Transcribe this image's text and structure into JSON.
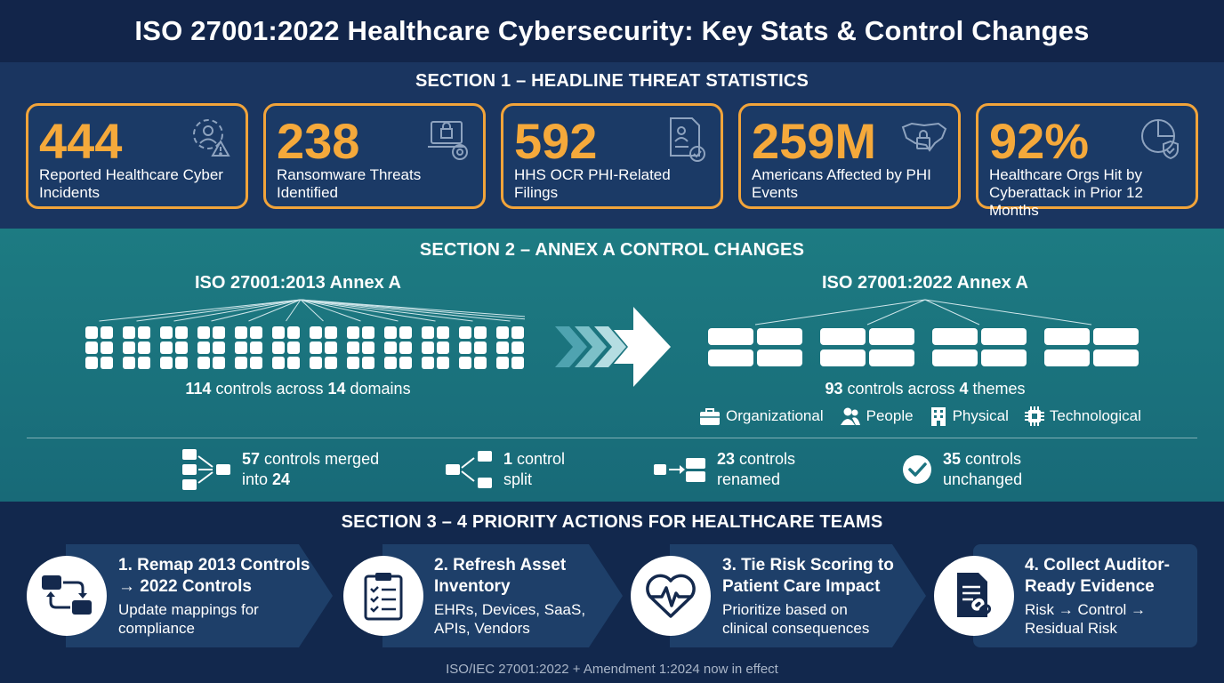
{
  "title": "ISO 27001:2022 Healthcare Cybersecurity: Key Stats & Control Changes",
  "section1": {
    "heading": "SECTION 1 – HEADLINE THREAT STATISTICS",
    "stats": [
      {
        "value": "444",
        "label": "Reported Healthcare Cyber Incidents",
        "icon": "alert-person-icon"
      },
      {
        "value": "238",
        "label": "Ransomware Threats Identified",
        "icon": "ransomware-laptop-icon"
      },
      {
        "value": "592",
        "label": "HHS OCR PHI-Related Filings",
        "icon": "document-check-icon"
      },
      {
        "value": "259M",
        "label": "Americans Affected by PHI Events",
        "icon": "us-map-lock-icon"
      },
      {
        "value": "92%",
        "label": "Healthcare Orgs Hit by Cyberattack in Prior 12 Months",
        "icon": "pie-shield-icon"
      }
    ]
  },
  "section2": {
    "heading": "SECTION 2 – ANNEX A CONTROL CHANGES",
    "old": {
      "title": "ISO 27001:2013 Annex A",
      "count": "114",
      "mid": " controls across ",
      "domains": "14",
      "suffix": " domains"
    },
    "new": {
      "title": "ISO 27001:2022 Annex A",
      "count": "93",
      "mid": " controls across ",
      "themes": "4",
      "suffix": " themes"
    },
    "themes": [
      {
        "label": "Organizational",
        "icon": "briefcase-icon"
      },
      {
        "label": "People",
        "icon": "people-icon"
      },
      {
        "label": "Physical",
        "icon": "building-icon"
      },
      {
        "label": "Technological",
        "icon": "chip-icon"
      }
    ],
    "changes": {
      "merged": {
        "count": "57",
        "text": " controls merged",
        "line2_pre": "into ",
        "line2_num": "24"
      },
      "split": {
        "count": "1",
        "text": " control",
        "line2": "split"
      },
      "renamed": {
        "count": "23",
        "text": " controls",
        "line2": "renamed"
      },
      "unchanged": {
        "count": "35",
        "text": " controls",
        "line2": "unchanged"
      }
    }
  },
  "section3": {
    "heading": "SECTION 3 – 4 PRIORITY ACTIONS FOR HEALTHCARE TEAMS",
    "actions": [
      {
        "title1": "1. Remap 2013 Controls",
        "title2": "→ 2022 Controls",
        "desc1": "Update mappings for",
        "desc2": "compliance",
        "icon": "remap-icon"
      },
      {
        "title1": "2. Refresh Asset",
        "title2": "Inventory",
        "desc1": "EHRs, Devices, SaaS,",
        "desc2": "APIs, Vendors",
        "icon": "clipboard-checklist-icon"
      },
      {
        "title1": "3. Tie Risk Scoring to",
        "title2": "Patient Care Impact",
        "desc1": "Prioritize based on",
        "desc2": "clinical consequences",
        "icon": "heart-pulse-icon"
      },
      {
        "title1": "4. Collect Auditor-",
        "title2": "Ready Evidence",
        "desc1": "Risk → Control →",
        "desc2": "Residual Risk",
        "icon": "document-link-icon"
      }
    ],
    "footer": "ISO/IEC 27001:2022 + Amendment 1:2024 now in effect"
  }
}
